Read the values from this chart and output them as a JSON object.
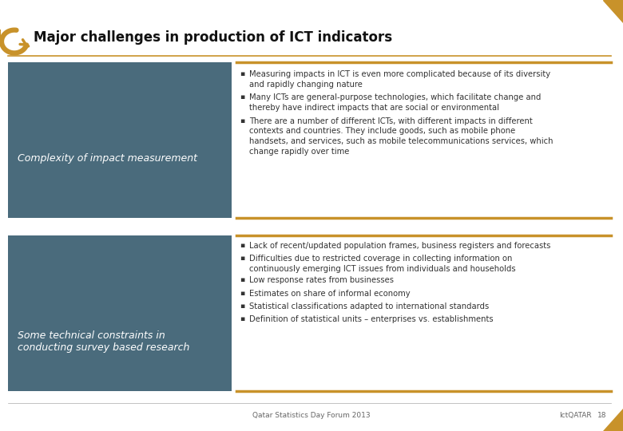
{
  "title": "Major challenges in production of ICT indicators",
  "bg_color": "#ffffff",
  "box_color": "#4a6b7c",
  "accent_color": "#c8922a",
  "text_color_light": "#ffffff",
  "text_color_dark": "#333333",
  "section1_label": "Complexity of impact measurement",
  "section1_bullets": [
    "Measuring impacts in ICT is even more complicated because of its diversity\nand rapidly changing nature",
    "Many ICTs are general-purpose technologies, which facilitate change and\nthereby have indirect impacts that are social or environmental",
    "There are a number of different ICTs, with different impacts in different\ncontexts and countries. They include goods, such as mobile phone\nhandsets, and services, such as mobile telecommunications services, which\nchange rapidly over time"
  ],
  "section2_label": "Some technical constraints in\nconducting survey based research",
  "section2_bullets": [
    "Lack of recent/updated population frames, business registers and forecasts",
    "Difficulties due to restricted coverage in collecting information on\ncontinuously emerging ICT issues from individuals and households",
    "Low response rates from businesses",
    "Estimates on share of informal economy",
    "Statistical classifications adapted to international standards",
    "Definition of statistical units – enterprises vs. establishments"
  ],
  "footer_left": "Qatar Statistics Day Forum 2013",
  "footer_right": "IctQATAR",
  "footer_page": "18"
}
